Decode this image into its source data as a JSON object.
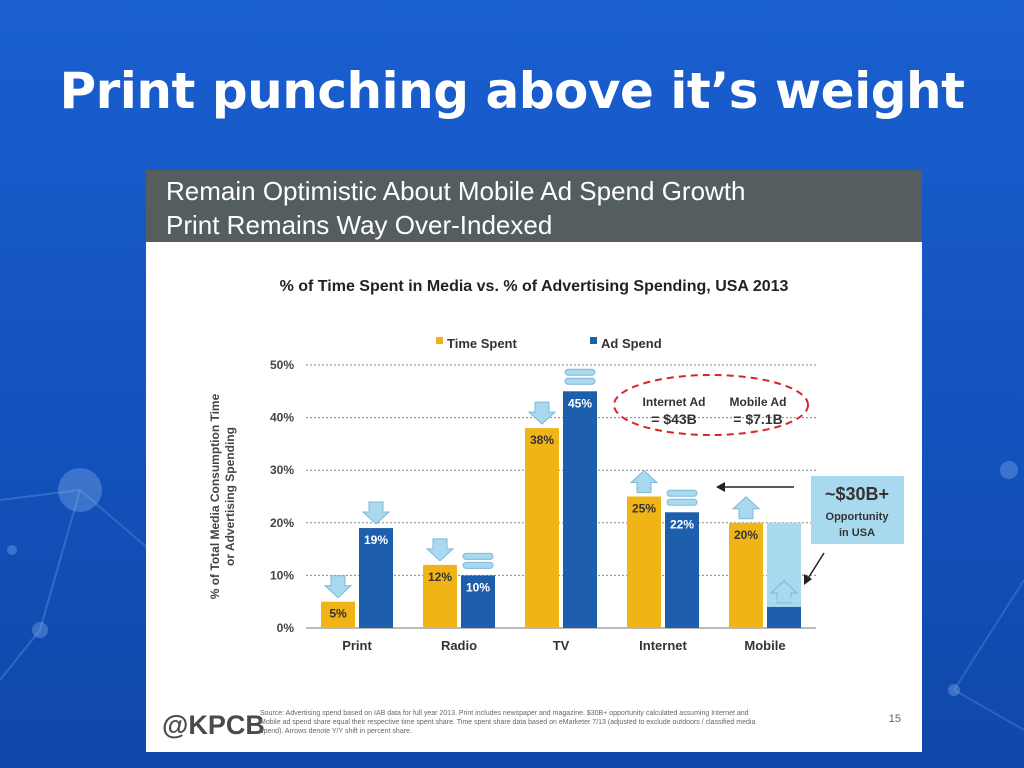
{
  "slide": {
    "title": "Print punching above it’s weight"
  },
  "header": {
    "line1": "Remain Optimistic About Mobile Ad Spend Growth",
    "line2": "Print Remains Way Over-Indexed"
  },
  "chart_data": {
    "type": "bar",
    "title": "% of Time Spent in Media vs. % of Advertising Spending, USA 2013",
    "ylabel_lines": [
      "% of Total Media Consumption Time",
      "or Advertising Spending"
    ],
    "ylim": [
      0,
      50
    ],
    "yticks": [
      "0%",
      "10%",
      "20%",
      "30%",
      "40%",
      "50%"
    ],
    "grid": true,
    "legend_position": "top",
    "categories": [
      "Print",
      "Radio",
      "TV",
      "Internet",
      "Mobile"
    ],
    "series": [
      {
        "name": "Time Spent",
        "color": "#f0b416",
        "values": [
          5,
          12,
          38,
          25,
          20
        ],
        "labels": [
          "5%",
          "12%",
          "38%",
          "25%",
          "20%"
        ]
      },
      {
        "name": "Ad Spend",
        "color": "#1d5fad",
        "values": [
          19,
          10,
          45,
          22,
          4
        ],
        "labels": [
          "19%",
          "10%",
          "45%",
          "22%",
          "4%"
        ]
      }
    ],
    "yoy_shift_markers": {
      "Time Spent": [
        "down",
        "down",
        "down",
        "up",
        "up"
      ],
      "Ad Spend": [
        "down",
        "flat",
        "flat",
        "flat",
        "up"
      ]
    },
    "mobile_gap_value": 20,
    "annotations": {
      "internet_ad": [
        "Internet Ad",
        "= $43B"
      ],
      "mobile_ad": [
        "Mobile Ad",
        "= $7.1B"
      ],
      "opportunity": [
        "~$30B+",
        "Opportunity",
        "in USA"
      ]
    }
  },
  "footer": {
    "logo": "@KPCB",
    "source_lines": [
      "Source: Advertising spend based on IAB data for full year 2013. Print includes newspaper and magazine. $30B+ opportunity calculated assuming Internet and",
      "Mobile ad spend share equal their respective time spent share. Time spent share data based on eMarketer 7/13 (adjusted to exclude outdoors / classified media",
      "spend). Arrows denote Y/Y shift in percent share."
    ],
    "page_number": "15"
  }
}
